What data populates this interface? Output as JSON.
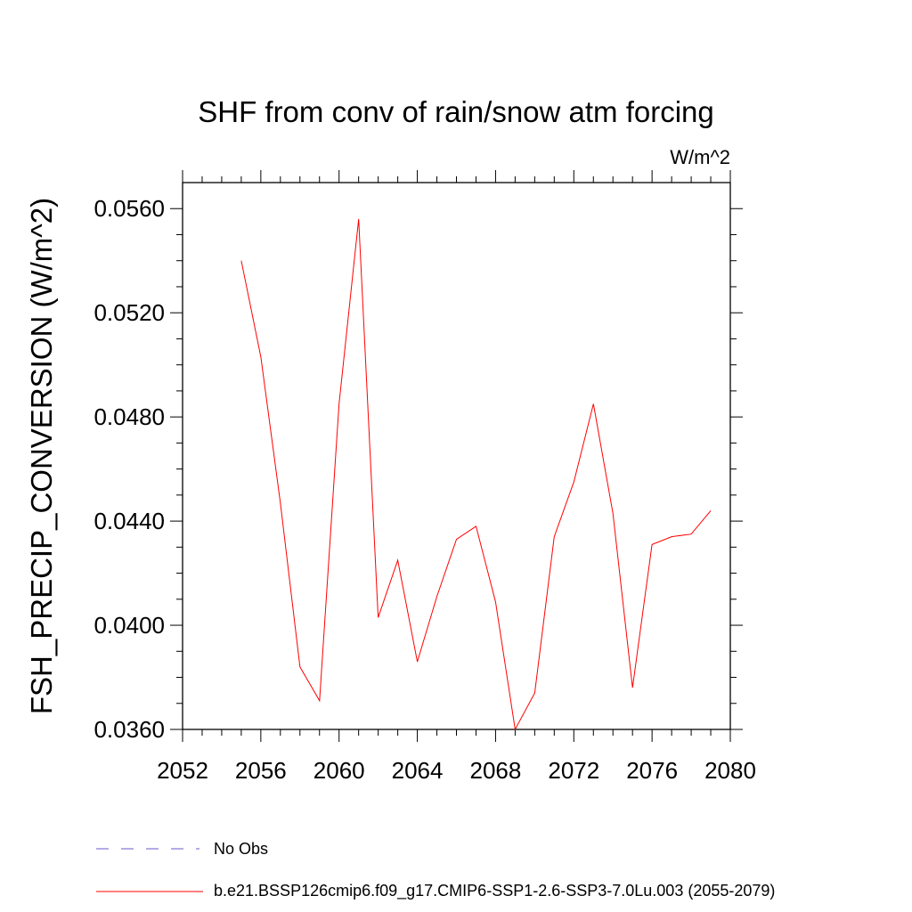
{
  "chart_data": {
    "type": "line",
    "title": "SHF from conv of rain/snow atm forcing",
    "units_label": "W/m^2",
    "ylabel": "FSH_PRECIP_CONVERSION  (W/m^2)",
    "xlabel": "",
    "xlim": [
      2052,
      2080
    ],
    "ylim": [
      0.036,
      0.057
    ],
    "x_ticks": [
      2052,
      2056,
      2060,
      2064,
      2068,
      2072,
      2076,
      2080
    ],
    "y_ticks": [
      0.036,
      0.04,
      0.044,
      0.048,
      0.052,
      0.056
    ],
    "x_tick_labels": [
      "2052",
      "2056",
      "2060",
      "2064",
      "2068",
      "2072",
      "2076",
      "2080"
    ],
    "y_tick_labels": [
      "0.0360",
      "0.0400",
      "0.0440",
      "0.0480",
      "0.0520",
      "0.0560"
    ],
    "grid": false,
    "legend_position": "bottom",
    "series": [
      {
        "name": "b.e21.BSSP126cmip6.f09_g17.CMIP6-SSP1-2.6-SSP3-7.0Lu.003 (2055-2079)",
        "color": "#ff0000",
        "x": [
          2055,
          2056,
          2057,
          2058,
          2059,
          2060,
          2061,
          2062,
          2063,
          2064,
          2065,
          2066,
          2067,
          2068,
          2069,
          2070,
          2071,
          2072,
          2073,
          2074,
          2075,
          2076,
          2077,
          2078,
          2079
        ],
        "values": [
          0.054,
          0.0503,
          0.0447,
          0.0384,
          0.0371,
          0.0485,
          0.0556,
          0.0403,
          0.0425,
          0.0386,
          0.0411,
          0.0433,
          0.0438,
          0.0409,
          0.036,
          0.0374,
          0.0434,
          0.0455,
          0.0485,
          0.0443,
          0.0376,
          0.0431,
          0.0434,
          0.0435,
          0.0444
        ]
      }
    ],
    "legend": [
      {
        "label": "No Obs",
        "color": "#6a5acd",
        "style": "dashed"
      },
      {
        "label": "b.e21.BSSP126cmip6.f09_g17.CMIP6-SSP1-2.6-SSP3-7.0Lu.003 (2055-2079)",
        "color": "#ff0000",
        "style": "solid"
      }
    ]
  }
}
